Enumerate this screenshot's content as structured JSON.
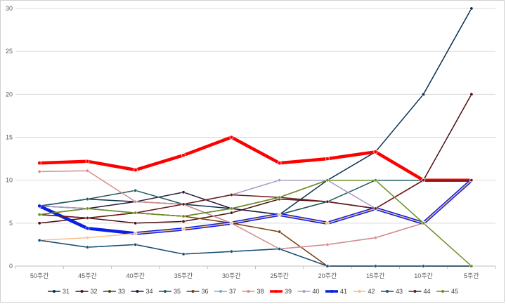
{
  "chart_data": {
    "type": "line",
    "title": "",
    "xlabel": "",
    "ylabel": "",
    "ylim": [
      0,
      30
    ],
    "yticks": [
      0,
      5,
      10,
      15,
      20,
      25,
      30
    ],
    "grid": true,
    "legend_position": "bottom",
    "categories": [
      "50주간",
      "45주간",
      "40주간",
      "35주간",
      "30주간",
      "25주간",
      "20주간",
      "15주간",
      "10주간",
      "5주간"
    ],
    "series": [
      {
        "name": "31",
        "color": "#0b2e4f",
        "width": 1.5,
        "values": [
          7,
          7.8,
          7.5,
          7.2,
          6.7,
          6,
          10,
          13.3,
          20,
          30
        ]
      },
      {
        "name": "32",
        "color": "#4a1010",
        "width": 1.5,
        "values": [
          5,
          5.6,
          5,
          5.2,
          6.2,
          7.8,
          7.5,
          6.7,
          10,
          20
        ]
      },
      {
        "name": "33",
        "color": "#3b4f0a",
        "width": 1.5,
        "values": [
          6,
          6.7,
          6.2,
          5.8,
          6.7,
          8,
          10,
          10,
          10,
          10
        ]
      },
      {
        "name": "34",
        "color": "#241a3d",
        "width": 1.5,
        "values": [
          7,
          6.7,
          7.5,
          8.6,
          6.7,
          6,
          7.5,
          6.7,
          5,
          10
        ]
      },
      {
        "name": "35",
        "color": "#1f5a5f",
        "width": 1.5,
        "values": [
          7,
          7.8,
          8.8,
          7.2,
          5,
          6,
          7.5,
          10,
          10,
          10
        ]
      },
      {
        "name": "36",
        "color": "#7a3e0a",
        "width": 1.5,
        "values": [
          6,
          5.6,
          6.2,
          5.8,
          5,
          4,
          0,
          0,
          0,
          0
        ]
      },
      {
        "name": "37",
        "color": "#7fa6d6",
        "width": 1.5,
        "values": [
          3,
          2.2,
          2.5,
          1.4,
          1.7,
          2,
          2.5,
          3.3,
          5,
          10
        ]
      },
      {
        "name": "38",
        "color": "#d98c8c",
        "width": 1.5,
        "values": [
          11,
          11.1,
          7.5,
          7.2,
          5,
          2,
          2.5,
          3.3,
          5,
          10
        ]
      },
      {
        "name": "39",
        "color": "#ff0000",
        "width": 4.5,
        "values": [
          12,
          12.2,
          11.2,
          12.9,
          15,
          12,
          12.5,
          13.3,
          10,
          10
        ]
      },
      {
        "name": "40",
        "color": "#a79bc9",
        "width": 1.5,
        "values": [
          7,
          6.7,
          6.2,
          7.2,
          8.3,
          10,
          10,
          6.7,
          5,
          10
        ]
      },
      {
        "name": "41",
        "color": "#0a1ee6",
        "width": 4.5,
        "values": [
          7,
          4.4,
          3.8,
          4.3,
          5,
          6,
          5,
          6.7,
          5,
          10
        ]
      },
      {
        "name": "42",
        "color": "#f7c08a",
        "width": 1.5,
        "values": [
          3,
          3.3,
          3.8,
          4.3,
          5,
          6,
          5,
          6.7,
          5,
          10
        ]
      },
      {
        "name": "43",
        "color": "#1a4f72",
        "width": 1.5,
        "values": [
          3,
          2.2,
          2.5,
          1.4,
          1.7,
          2,
          0,
          0,
          0,
          0
        ]
      },
      {
        "name": "44",
        "color": "#6b1a1a",
        "width": 1.5,
        "values": [
          6,
          5.6,
          6.2,
          7.2,
          8.3,
          8,
          7.5,
          6.7,
          10,
          10
        ]
      },
      {
        "name": "45",
        "color": "#6a8e23",
        "width": 1.5,
        "values": [
          6,
          6.7,
          6.2,
          5.8,
          6.7,
          8,
          10,
          10,
          5,
          0
        ]
      }
    ]
  }
}
